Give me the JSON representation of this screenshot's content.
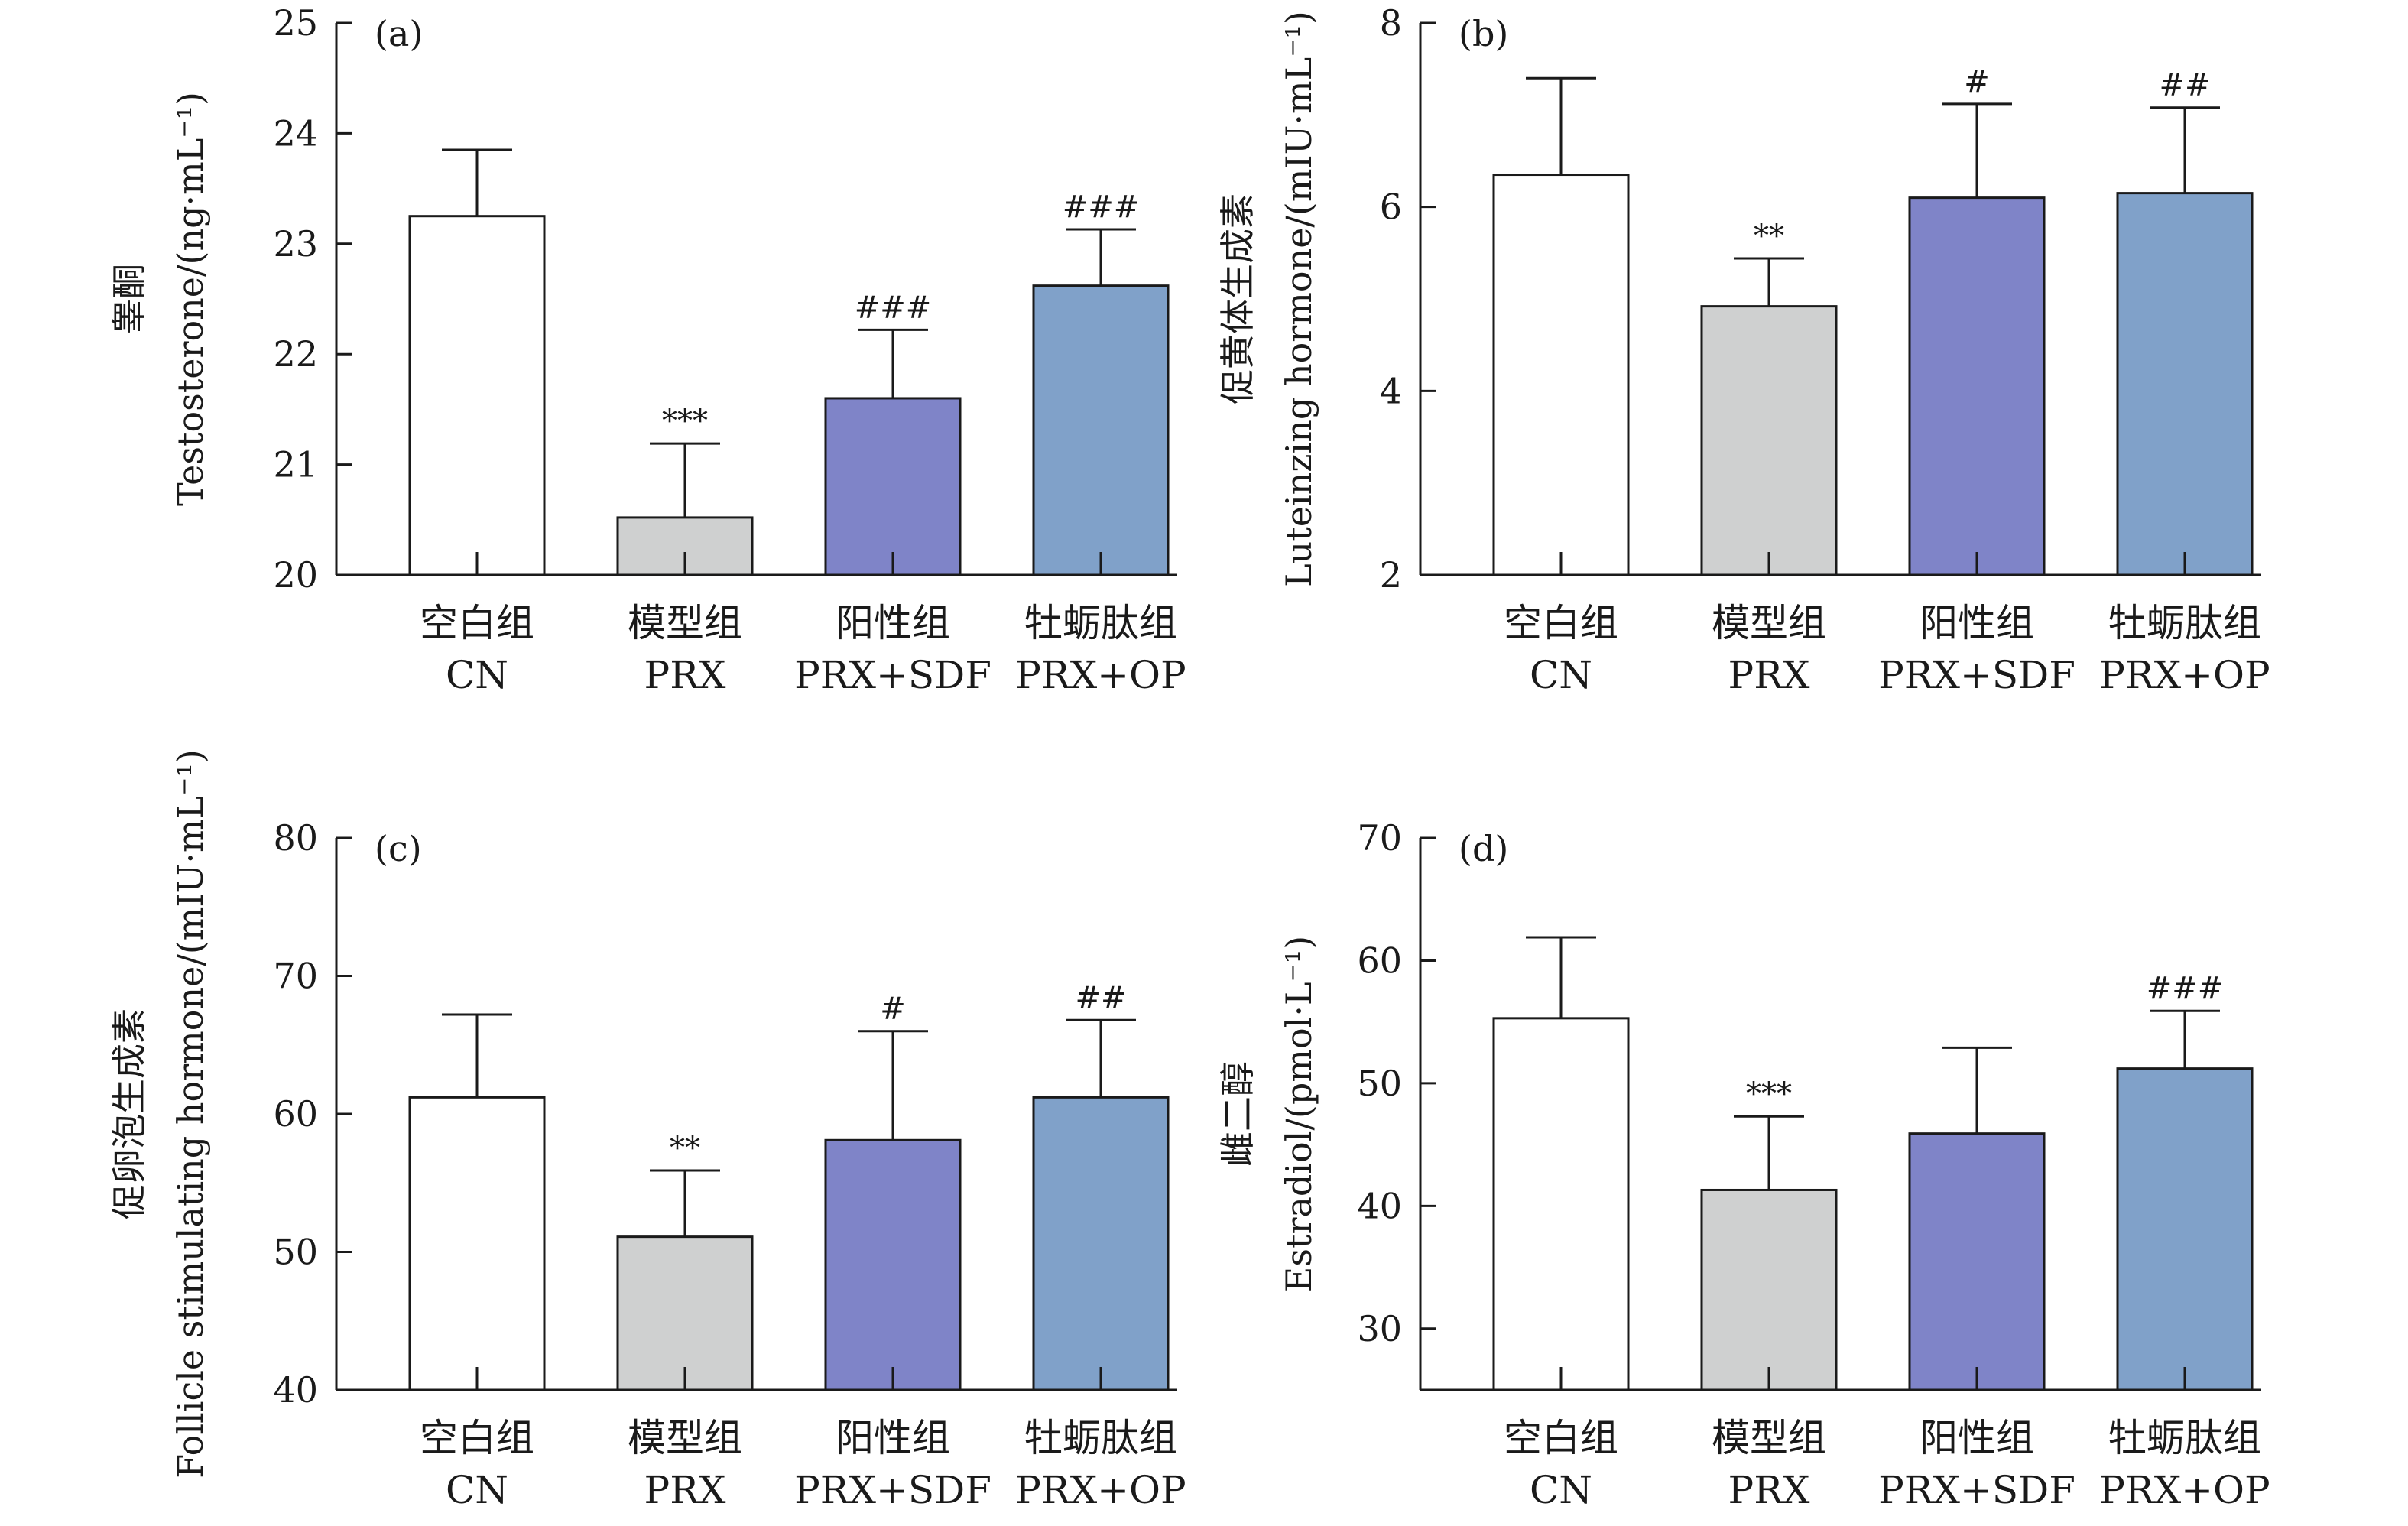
{
  "chart_data": [
    {
      "type": "bar",
      "panel": "(a)",
      "ylabel_cn": "睾酮",
      "ylabel_en": "Testosterone/(ng·mL⁻¹)",
      "ylim": [
        20,
        25
      ],
      "yticks": [
        20,
        21,
        22,
        23,
        24,
        25
      ],
      "categories": [
        {
          "cn": "空白组",
          "en": "CN"
        },
        {
          "cn": "模型组",
          "en": "PRX"
        },
        {
          "cn": "阳性组",
          "en": "PRX+SDF"
        },
        {
          "cn": "牡蛎肽组",
          "en": "PRX+OP"
        }
      ],
      "values": [
        23.25,
        20.52,
        21.6,
        22.62
      ],
      "errors": [
        0.6,
        0.67,
        0.62,
        0.51
      ],
      "significance": [
        "",
        "***",
        "###",
        "###"
      ],
      "colors": [
        "#ffffff",
        "#cfd0d0",
        "#7f84c8",
        "#80a1c9"
      ]
    },
    {
      "type": "bar",
      "panel": "(b)",
      "ylabel_cn": "促黄体生成素",
      "ylabel_en": "Luteinzing hormone/(mIU·mL⁻¹)",
      "ylim": [
        2,
        8
      ],
      "yticks": [
        2,
        4,
        6,
        8
      ],
      "categories": [
        {
          "cn": "空白组",
          "en": "CN"
        },
        {
          "cn": "模型组",
          "en": "PRX"
        },
        {
          "cn": "阳性组",
          "en": "PRX+SDF"
        },
        {
          "cn": "牡蛎肽组",
          "en": "PRX+OP"
        }
      ],
      "values": [
        6.35,
        4.92,
        6.1,
        6.15
      ],
      "errors": [
        1.05,
        0.52,
        1.02,
        0.93
      ],
      "significance": [
        "",
        "**",
        "#",
        "##"
      ],
      "colors": [
        "#ffffff",
        "#cfd0d0",
        "#7f84c8",
        "#80a1c9"
      ]
    },
    {
      "type": "bar",
      "panel": "(c)",
      "ylabel_cn": "促卵泡生成素",
      "ylabel_en": "Follicle stimulating hormone/(mIU·mL⁻¹)",
      "ylim": [
        40,
        80
      ],
      "yticks": [
        40,
        50,
        60,
        70,
        80
      ],
      "categories": [
        {
          "cn": "空白组",
          "en": "CN"
        },
        {
          "cn": "模型组",
          "en": "PRX"
        },
        {
          "cn": "阳性组",
          "en": "PRX+SDF"
        },
        {
          "cn": "牡蛎肽组",
          "en": "PRX+OP"
        }
      ],
      "values": [
        61.2,
        51.1,
        58.1,
        61.2
      ],
      "errors": [
        6.0,
        4.8,
        7.9,
        5.6
      ],
      "significance": [
        "",
        "**",
        "#",
        "##"
      ],
      "colors": [
        "#ffffff",
        "#cfd0d0",
        "#7f84c8",
        "#80a1c9"
      ]
    },
    {
      "type": "bar",
      "panel": "(d)",
      "ylabel_cn": "雌二醇",
      "ylabel_en": "Estradiol/(pmol·L⁻¹)",
      "ylim": [
        25,
        70
      ],
      "yticks": [
        30,
        40,
        50,
        60,
        70
      ],
      "categories": [
        {
          "cn": "空白组",
          "en": "CN"
        },
        {
          "cn": "模型组",
          "en": "PRX"
        },
        {
          "cn": "阳性组",
          "en": "PRX+SDF"
        },
        {
          "cn": "牡蛎肽组",
          "en": "PRX+OP"
        }
      ],
      "values": [
        55.3,
        41.3,
        45.9,
        51.2
      ],
      "errors": [
        6.6,
        6.0,
        7.0,
        4.7
      ],
      "significance": [
        "",
        "***",
        "",
        "###"
      ],
      "colors": [
        "#ffffff",
        "#cfd0d0",
        "#7f84c8",
        "#80a1c9"
      ]
    }
  ]
}
